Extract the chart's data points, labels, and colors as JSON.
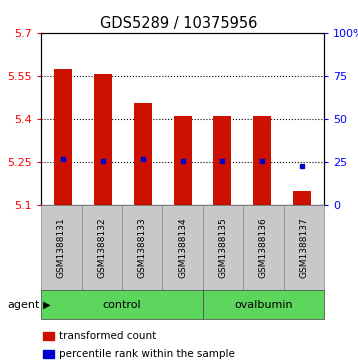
{
  "title": "GDS5289 / 10375956",
  "samples": [
    "GSM1388131",
    "GSM1388132",
    "GSM1388133",
    "GSM1388134",
    "GSM1388135",
    "GSM1388136",
    "GSM1388137"
  ],
  "bar_tops": [
    5.575,
    5.555,
    5.455,
    5.41,
    5.41,
    5.41,
    5.15
  ],
  "bar_base": 5.1,
  "blue_dots": [
    5.262,
    5.252,
    5.262,
    5.252,
    5.252,
    5.252,
    5.235
  ],
  "ylim_left": [
    5.1,
    5.7
  ],
  "ylim_right": [
    0,
    100
  ],
  "yticks_left": [
    5.1,
    5.25,
    5.4,
    5.55,
    5.7
  ],
  "yticks_right": [
    0,
    25,
    50,
    75,
    100
  ],
  "ytick_labels_left": [
    "5.1",
    "5.25",
    "5.4",
    "5.55",
    "5.7"
  ],
  "ytick_labels_right": [
    "0",
    "25",
    "50",
    "75",
    "100%"
  ],
  "hlines": [
    5.25,
    5.4,
    5.55
  ],
  "groups": [
    {
      "label": "control",
      "indices": [
        0,
        1,
        2,
        3
      ],
      "color": "#5CD65C"
    },
    {
      "label": "ovalbumin",
      "indices": [
        4,
        5,
        6
      ],
      "color": "#5CD65C"
    }
  ],
  "agent_label": "agent",
  "bar_color": "#CC1100",
  "dot_color": "#0000CC",
  "bar_width": 0.45,
  "legend_items": [
    {
      "label": "transformed count",
      "color": "#CC1100"
    },
    {
      "label": "percentile rank within the sample",
      "color": "#0000CC"
    }
  ],
  "title_fontsize": 10.5,
  "tick_fontsize": 8,
  "sample_fontsize": 6.5,
  "group_fontsize": 8,
  "legend_fontsize": 7.5
}
